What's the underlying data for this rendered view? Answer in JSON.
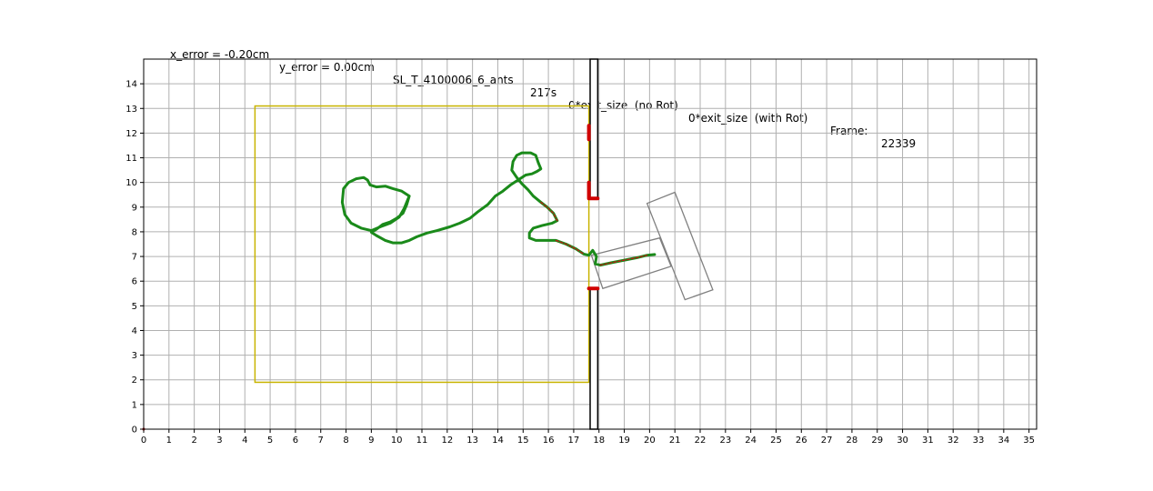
{
  "title": {
    "x_error": "x_error = -0.20cm",
    "y_error": "y_error = 0.00cm",
    "name": "SL_T_4100006_6_ants",
    "time": "217s",
    "no_rot": "0*exit_size  (no Rot)",
    "with_rot": "0*exit_size  (with Rot)",
    "frame_label": "Frame:",
    "frame_value": "22339"
  },
  "chart_data": {
    "type": "line",
    "xlim": [
      0,
      35.3
    ],
    "ylim": [
      0,
      15
    ],
    "x_ticks": [
      0,
      1,
      2,
      3,
      4,
      5,
      6,
      7,
      8,
      9,
      10,
      11,
      12,
      13,
      14,
      15,
      16,
      17,
      18,
      19,
      20,
      21,
      22,
      23,
      24,
      25,
      26,
      27,
      28,
      29,
      30,
      31,
      32,
      33,
      34,
      35
    ],
    "y_ticks": [
      0,
      1,
      2,
      3,
      4,
      5,
      6,
      7,
      8,
      9,
      10,
      11,
      12,
      13,
      14
    ],
    "grid": true,
    "colors": {
      "trajectory": "#1a8a1a",
      "trajectory_overlay": "#c81414",
      "arena_box": "#c8b400",
      "wall": "#000000",
      "load": "#808080",
      "slit_marker": "#d00000",
      "grid": "#b0b0b0"
    },
    "arena_box": {
      "x0": 4.4,
      "y0": 1.9,
      "x1": 17.6,
      "y1": 13.1
    },
    "walls": [
      {
        "x0": 17.65,
        "x1": 17.95,
        "y0": 9.35,
        "y1": 15
      },
      {
        "x0": 17.65,
        "x1": 17.95,
        "y0": 0,
        "y1": 5.7
      }
    ],
    "slit_markers": [
      {
        "points": [
          [
            17.6,
            12.3
          ],
          [
            17.6,
            11.75
          ]
        ]
      },
      {
        "points": [
          [
            17.6,
            10.0
          ],
          [
            17.6,
            9.35
          ],
          [
            17.95,
            9.35
          ]
        ]
      },
      {
        "points": [
          [
            17.6,
            5.7
          ],
          [
            17.95,
            5.7
          ]
        ]
      }
    ],
    "load_rectangles": [
      {
        "corners": [
          [
            19.9,
            9.15
          ],
          [
            21.0,
            9.6
          ],
          [
            22.5,
            5.65
          ],
          [
            21.4,
            5.25
          ]
        ]
      },
      {
        "corners": [
          [
            17.7,
            7.05
          ],
          [
            20.4,
            7.75
          ],
          [
            20.85,
            6.6
          ],
          [
            18.15,
            5.7
          ]
        ]
      }
    ],
    "trajectory": [
      [
        10.5,
        9.45
      ],
      [
        10.3,
        8.95
      ],
      [
        10.1,
        8.6
      ],
      [
        9.75,
        8.35
      ],
      [
        9.35,
        8.2
      ],
      [
        9.0,
        8.05
      ],
      [
        8.6,
        8.15
      ],
      [
        8.2,
        8.35
      ],
      [
        7.95,
        8.7
      ],
      [
        7.85,
        9.2
      ],
      [
        7.9,
        9.75
      ],
      [
        8.1,
        10.0
      ],
      [
        8.4,
        10.15
      ],
      [
        8.7,
        10.2
      ],
      [
        8.85,
        10.1
      ],
      [
        8.95,
        9.9
      ],
      [
        9.2,
        9.82
      ],
      [
        9.55,
        9.85
      ],
      [
        9.85,
        9.75
      ],
      [
        10.2,
        9.65
      ],
      [
        10.5,
        9.45
      ],
      [
        10.4,
        9.1
      ],
      [
        10.25,
        8.75
      ],
      [
        10.0,
        8.55
      ],
      [
        9.75,
        8.4
      ],
      [
        9.45,
        8.3
      ],
      [
        9.2,
        8.1
      ],
      [
        9.0,
        7.98
      ],
      [
        9.2,
        7.85
      ],
      [
        9.55,
        7.65
      ],
      [
        9.85,
        7.55
      ],
      [
        10.2,
        7.55
      ],
      [
        10.5,
        7.65
      ],
      [
        10.8,
        7.8
      ],
      [
        11.2,
        7.95
      ],
      [
        11.6,
        8.05
      ],
      [
        12.1,
        8.2
      ],
      [
        12.5,
        8.35
      ],
      [
        12.9,
        8.55
      ],
      [
        13.2,
        8.8
      ],
      [
        13.6,
        9.1
      ],
      [
        13.9,
        9.45
      ],
      [
        14.2,
        9.65
      ],
      [
        14.5,
        9.9
      ],
      [
        14.8,
        10.1
      ],
      [
        15.1,
        10.3
      ],
      [
        15.35,
        10.35
      ],
      [
        15.55,
        10.45
      ],
      [
        15.7,
        10.55
      ],
      [
        15.6,
        10.8
      ],
      [
        15.5,
        11.1
      ],
      [
        15.3,
        11.2
      ],
      [
        14.95,
        11.2
      ],
      [
        14.75,
        11.1
      ],
      [
        14.6,
        10.85
      ],
      [
        14.55,
        10.5
      ],
      [
        14.75,
        10.2
      ],
      [
        14.95,
        9.95
      ],
      [
        15.2,
        9.7
      ],
      [
        15.4,
        9.45
      ],
      [
        15.7,
        9.2
      ],
      [
        15.95,
        9.0
      ],
      [
        16.2,
        8.75
      ],
      [
        16.35,
        8.45
      ],
      [
        16.15,
        8.35
      ],
      [
        15.75,
        8.25
      ],
      [
        15.4,
        8.15
      ],
      [
        15.25,
        7.95
      ],
      [
        15.25,
        7.75
      ],
      [
        15.5,
        7.65
      ],
      [
        15.9,
        7.65
      ],
      [
        16.3,
        7.65
      ],
      [
        16.7,
        7.5
      ],
      [
        17.1,
        7.3
      ],
      [
        17.4,
        7.1
      ],
      [
        17.6,
        7.05
      ],
      [
        17.75,
        7.25
      ],
      [
        17.9,
        7.0
      ],
      [
        17.85,
        6.7
      ],
      [
        18.05,
        6.65
      ],
      [
        18.5,
        6.75
      ],
      [
        19.0,
        6.85
      ],
      [
        19.5,
        6.95
      ],
      [
        19.9,
        7.05
      ],
      [
        20.2,
        7.08
      ]
    ],
    "trajectory_overlay_segments": [
      [
        [
          15.7,
          9.2
        ],
        [
          15.95,
          9.0
        ],
        [
          16.2,
          8.75
        ],
        [
          16.35,
          8.45
        ]
      ],
      [
        [
          16.3,
          7.65
        ],
        [
          16.7,
          7.5
        ],
        [
          17.1,
          7.3
        ],
        [
          17.4,
          7.1
        ]
      ],
      [
        [
          18.05,
          6.65
        ],
        [
          18.5,
          6.75
        ],
        [
          19.0,
          6.85
        ],
        [
          19.5,
          6.95
        ],
        [
          19.9,
          7.05
        ]
      ]
    ]
  }
}
